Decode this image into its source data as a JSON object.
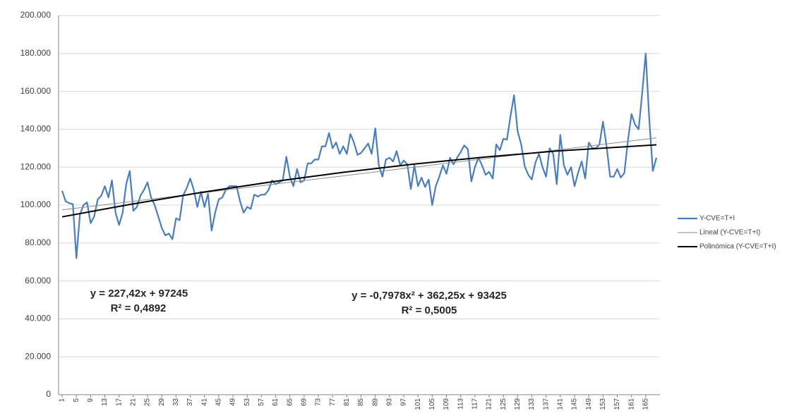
{
  "chart_data": {
    "type": "line",
    "x": [
      1,
      2,
      3,
      4,
      5,
      6,
      7,
      8,
      9,
      10,
      11,
      12,
      13,
      14,
      15,
      16,
      17,
      18,
      19,
      20,
      21,
      22,
      23,
      24,
      25,
      26,
      27,
      28,
      29,
      30,
      31,
      32,
      33,
      34,
      35,
      36,
      37,
      38,
      39,
      40,
      41,
      42,
      43,
      44,
      45,
      46,
      47,
      48,
      49,
      50,
      51,
      52,
      53,
      54,
      55,
      56,
      57,
      58,
      59,
      60,
      61,
      62,
      63,
      64,
      65,
      66,
      67,
      68,
      69,
      70,
      71,
      72,
      73,
      74,
      75,
      76,
      77,
      78,
      79,
      80,
      81,
      82,
      83,
      84,
      85,
      86,
      87,
      88,
      89,
      90,
      91,
      92,
      93,
      94,
      95,
      96,
      97,
      98,
      99,
      100,
      101,
      102,
      103,
      104,
      105,
      106,
      107,
      108,
      109,
      110,
      111,
      112,
      113,
      114,
      115,
      116,
      117,
      118,
      119,
      120,
      121,
      122,
      123,
      124,
      125,
      126,
      127,
      128,
      129,
      130,
      131,
      132,
      133,
      134,
      135,
      136,
      137,
      138,
      139,
      140,
      141,
      142,
      143,
      144,
      145,
      146,
      147,
      148,
      149,
      150,
      151,
      152,
      153,
      154,
      155,
      156,
      157,
      158,
      159,
      160,
      161,
      162,
      163,
      164,
      165,
      166,
      167,
      168
    ],
    "xlim": [
      0,
      169
    ],
    "xticks": [
      1,
      5,
      9,
      13,
      17,
      21,
      25,
      29,
      33,
      37,
      41,
      45,
      49,
      53,
      57,
      61,
      65,
      69,
      73,
      77,
      81,
      85,
      89,
      93,
      97,
      101,
      105,
      109,
      113,
      117,
      121,
      125,
      129,
      133,
      137,
      141,
      145,
      149,
      153,
      157,
      161,
      165
    ],
    "ylim": [
      0,
      200000
    ],
    "yticks": [
      0,
      {
        "value": 20000,
        "label": "20.000"
      },
      {
        "value": 40000,
        "label": "40.000"
      },
      {
        "value": 60000,
        "label": "60.000"
      },
      {
        "value": 80000,
        "label": "80.000"
      },
      {
        "value": 100000,
        "label": "100.000"
      },
      {
        "value": 120000,
        "label": "120.000"
      },
      {
        "value": 140000,
        "label": "140.000"
      },
      {
        "value": 160000,
        "label": "160.000"
      },
      {
        "value": 180000,
        "label": "180.000"
      },
      {
        "value": 200000,
        "label": "200.000"
      }
    ],
    "grid": true,
    "series": [
      {
        "name": "Y-CVE=T+I",
        "color": "#4a7ebb",
        "values": [
          107500,
          102000,
          101000,
          100500,
          72000,
          95000,
          100000,
          101500,
          90500,
          94000,
          103000,
          105000,
          110000,
          104000,
          113000,
          96000,
          89500,
          96000,
          111000,
          118000,
          97000,
          99000,
          105000,
          108000,
          112000,
          104000,
          100000,
          94000,
          88000,
          84000,
          85000,
          82000,
          93000,
          92000,
          105000,
          109000,
          114000,
          108000,
          99000,
          107000,
          99000,
          106000,
          86500,
          96000,
          103000,
          104000,
          108000,
          110000,
          110000,
          110000,
          102000,
          96000,
          99000,
          98000,
          105500,
          104500,
          105500,
          105500,
          108000,
          113000,
          111000,
          112000,
          113000,
          125500,
          115000,
          110000,
          119000,
          112000,
          113000,
          122000,
          122000,
          124000,
          124000,
          131000,
          131000,
          138000,
          130000,
          133000,
          127000,
          131000,
          127000,
          137500,
          133000,
          126500,
          127500,
          130000,
          132500,
          127000,
          140500,
          121000,
          115000,
          124000,
          125000,
          123000,
          128500,
          121000,
          123500,
          121500,
          108500,
          121000,
          110000,
          114500,
          109500,
          113500,
          100000,
          110000,
          115000,
          121000,
          116500,
          125000,
          121500,
          125000,
          128000,
          131500,
          129500,
          112500,
          120000,
          125000,
          121000,
          116000,
          117500,
          114000,
          132000,
          129000,
          135000,
          134500,
          147000,
          158000,
          139000,
          132000,
          120500,
          116000,
          113500,
          122500,
          127000,
          120000,
          115000,
          130000,
          127000,
          111000,
          137000,
          121000,
          116000,
          120000,
          110000,
          117000,
          123000,
          114000,
          133000,
          130000,
          130000,
          132000,
          144000,
          131000,
          115000,
          115000,
          119000,
          114500,
          117000,
          134000,
          148000,
          142500,
          140000,
          159000,
          180000,
          145000,
          118000,
          125000
        ]
      },
      {
        "name": "Lineal (Y-CVE=T+I)",
        "color": "#8c8c8c",
        "x": [
          1,
          168
        ],
        "values": [
          97472,
          135452
        ]
      },
      {
        "name": "Polinómica (Y-CVE=T+I)",
        "color": "#000000",
        "x": [
          1,
          20,
          40,
          60,
          80,
          100,
          120,
          140,
          168
        ],
        "values": [
          93786,
          100351,
          106638,
          112288,
          117299,
          121672,
          125407,
          128503,
          131766
        ]
      }
    ],
    "annotations": [
      "y = 227,42x + 97245",
      "R² = 0,4892",
      "y = -0,7978x² + 362,25x + 93425",
      "R² = 0,5005"
    ]
  }
}
